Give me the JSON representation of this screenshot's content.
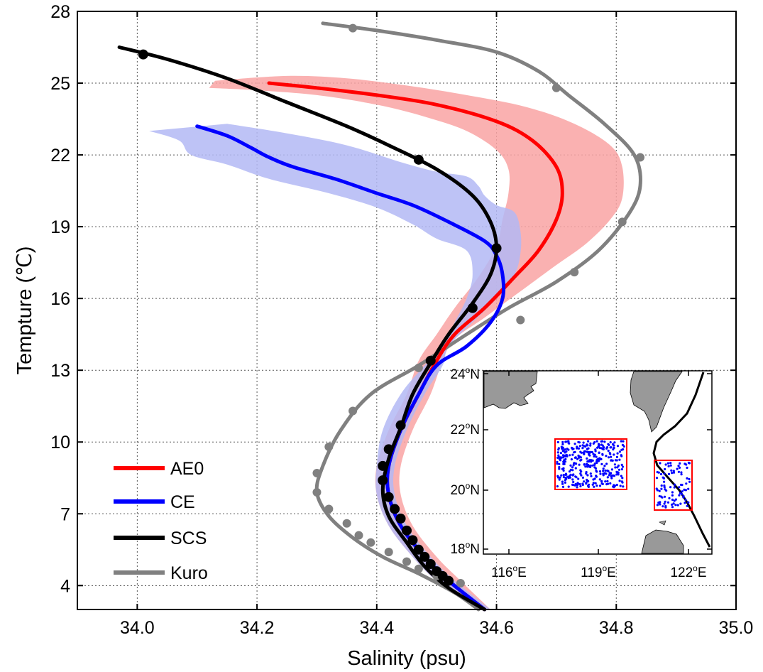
{
  "chart_data": {
    "type": "line",
    "xlabel": "Salinity (psu)",
    "ylabel": "Tempture (℃)",
    "xlim": [
      33.9,
      35.0
    ],
    "ylim": [
      3,
      28
    ],
    "x_ticks": [
      34.0,
      34.2,
      34.4,
      34.6,
      34.8,
      35.0
    ],
    "x_tick_labels": [
      "34.0",
      "34.2",
      "34.4",
      "34.6",
      "34.8",
      "35.0"
    ],
    "y_ticks": [
      4,
      7,
      10,
      13,
      16,
      19,
      22,
      25,
      28
    ],
    "y_tick_labels": [
      "4",
      "7",
      "10",
      "13",
      "16",
      "19",
      "22",
      "25",
      "28"
    ],
    "grid": true,
    "legend_position": "bottom-left",
    "series": [
      {
        "name": "AE0",
        "color": "#ff0000",
        "band_color": "#f9a3a3",
        "points": [
          [
            34.22,
            25.0
          ],
          [
            34.3,
            24.8
          ],
          [
            34.4,
            24.5
          ],
          [
            34.5,
            24.1
          ],
          [
            34.6,
            23.4
          ],
          [
            34.66,
            22.6
          ],
          [
            34.7,
            21.5
          ],
          [
            34.71,
            20.4
          ],
          [
            34.7,
            19.3
          ],
          [
            34.67,
            18.0
          ],
          [
            34.63,
            16.9
          ],
          [
            34.58,
            15.6
          ],
          [
            34.53,
            14.5
          ],
          [
            34.5,
            13.4
          ],
          [
            34.47,
            12.0
          ],
          [
            34.44,
            10.5
          ],
          [
            34.42,
            9.0
          ],
          [
            34.42,
            7.8
          ],
          [
            34.44,
            6.5
          ],
          [
            34.48,
            5.2
          ],
          [
            34.52,
            4.2
          ],
          [
            34.58,
            3.0
          ]
        ],
        "band_upper": [
          [
            34.13,
            25.1
          ],
          [
            34.25,
            25.3
          ],
          [
            34.35,
            25.2
          ],
          [
            34.45,
            24.9
          ],
          [
            34.55,
            24.5
          ],
          [
            34.65,
            24.0
          ],
          [
            34.73,
            23.3
          ],
          [
            34.79,
            22.4
          ],
          [
            34.81,
            21.5
          ],
          [
            34.81,
            20.2
          ],
          [
            34.79,
            19.3
          ],
          [
            34.75,
            18.3
          ],
          [
            34.7,
            17.4
          ],
          [
            34.64,
            16.3
          ],
          [
            34.58,
            15.2
          ],
          [
            34.53,
            14.3
          ],
          [
            34.51,
            13.4
          ],
          [
            34.49,
            12.0
          ],
          [
            34.46,
            10.5
          ],
          [
            34.44,
            9.0
          ],
          [
            34.44,
            7.8
          ],
          [
            34.46,
            6.5
          ],
          [
            34.5,
            5.2
          ],
          [
            34.54,
            4.2
          ],
          [
            34.59,
            3.0
          ]
        ],
        "band_lower": [
          [
            34.12,
            24.8
          ],
          [
            34.2,
            24.7
          ],
          [
            34.3,
            24.5
          ],
          [
            34.4,
            24.1
          ],
          [
            34.48,
            23.6
          ],
          [
            34.55,
            23.0
          ],
          [
            34.6,
            22.2
          ],
          [
            34.62,
            21.4
          ],
          [
            34.62,
            20.4
          ],
          [
            34.61,
            19.3
          ],
          [
            34.6,
            18.2
          ],
          [
            34.57,
            16.9
          ],
          [
            34.53,
            15.6
          ],
          [
            34.5,
            14.5
          ],
          [
            34.47,
            13.4
          ],
          [
            34.45,
            12.0
          ],
          [
            34.42,
            10.5
          ],
          [
            34.4,
            9.0
          ],
          [
            34.4,
            7.8
          ],
          [
            34.42,
            6.5
          ],
          [
            34.46,
            5.2
          ],
          [
            34.5,
            4.2
          ],
          [
            34.57,
            3.0
          ]
        ]
      },
      {
        "name": "CE",
        "color": "#0000ff",
        "band_color": "#b3b9f5",
        "points": [
          [
            34.1,
            23.2
          ],
          [
            34.15,
            22.8
          ],
          [
            34.19,
            22.3
          ],
          [
            34.22,
            21.9
          ],
          [
            34.26,
            21.5
          ],
          [
            34.33,
            21.0
          ],
          [
            34.4,
            20.4
          ],
          [
            34.46,
            19.9
          ],
          [
            34.52,
            19.2
          ],
          [
            34.58,
            18.4
          ],
          [
            34.6,
            17.8
          ],
          [
            34.61,
            17.0
          ],
          [
            34.61,
            16.0
          ],
          [
            34.59,
            15.0
          ],
          [
            34.55,
            14.0
          ],
          [
            34.5,
            13.2
          ],
          [
            34.47,
            12.0
          ],
          [
            34.44,
            10.5
          ],
          [
            34.42,
            9.0
          ],
          [
            34.42,
            7.8
          ],
          [
            34.44,
            6.5
          ],
          [
            34.48,
            5.2
          ],
          [
            34.52,
            4.2
          ],
          [
            34.58,
            3.0
          ]
        ],
        "band_upper": [
          [
            34.15,
            23.3
          ],
          [
            34.25,
            22.9
          ],
          [
            34.35,
            22.4
          ],
          [
            34.44,
            21.7
          ],
          [
            34.5,
            21.3
          ],
          [
            34.55,
            21.1
          ],
          [
            34.57,
            20.7
          ],
          [
            34.58,
            20.3
          ],
          [
            34.6,
            19.9
          ],
          [
            34.63,
            19.6
          ],
          [
            34.64,
            18.8
          ],
          [
            34.64,
            17.9
          ],
          [
            34.63,
            17.0
          ],
          [
            34.6,
            16.0
          ],
          [
            34.56,
            15.0
          ],
          [
            34.52,
            14.0
          ],
          [
            34.51,
            13.2
          ],
          [
            34.48,
            12.0
          ],
          [
            34.45,
            10.5
          ],
          [
            34.43,
            9.0
          ],
          [
            34.43,
            7.8
          ],
          [
            34.45,
            6.5
          ],
          [
            34.49,
            5.2
          ],
          [
            34.53,
            4.2
          ],
          [
            34.59,
            3.0
          ]
        ],
        "band_lower": [
          [
            34.02,
            23.0
          ],
          [
            34.07,
            22.6
          ],
          [
            34.09,
            22.0
          ],
          [
            34.15,
            21.6
          ],
          [
            34.22,
            21.0
          ],
          [
            34.32,
            20.4
          ],
          [
            34.4,
            19.8
          ],
          [
            34.46,
            19.1
          ],
          [
            34.5,
            18.5
          ],
          [
            34.55,
            18.0
          ],
          [
            34.56,
            17.0
          ],
          [
            34.55,
            16.0
          ],
          [
            34.53,
            15.0
          ],
          [
            34.51,
            14.0
          ],
          [
            34.48,
            13.2
          ],
          [
            34.44,
            12.0
          ],
          [
            34.41,
            10.5
          ],
          [
            34.4,
            9.0
          ],
          [
            34.4,
            7.8
          ],
          [
            34.42,
            6.5
          ],
          [
            34.46,
            5.2
          ],
          [
            34.5,
            4.2
          ],
          [
            34.57,
            3.0
          ]
        ]
      },
      {
        "name": "SCS",
        "color": "#000000",
        "marker_size": 7,
        "points": [
          [
            33.97,
            26.5
          ],
          [
            34.05,
            26.0
          ],
          [
            34.15,
            25.2
          ],
          [
            34.25,
            24.2
          ],
          [
            34.35,
            23.2
          ],
          [
            34.42,
            22.4
          ],
          [
            34.5,
            21.4
          ],
          [
            34.56,
            20.3
          ],
          [
            34.59,
            19.2
          ],
          [
            34.6,
            18.1
          ],
          [
            34.59,
            17.0
          ],
          [
            34.56,
            15.8
          ],
          [
            34.52,
            14.5
          ],
          [
            34.49,
            13.3
          ],
          [
            34.46,
            12.0
          ],
          [
            34.44,
            10.6
          ],
          [
            34.42,
            9.3
          ],
          [
            34.41,
            8.0
          ],
          [
            34.42,
            6.9
          ],
          [
            34.45,
            5.8
          ],
          [
            34.48,
            4.8
          ],
          [
            34.52,
            3.9
          ],
          [
            34.58,
            3.0
          ]
        ],
        "markers": [
          [
            34.01,
            26.2
          ],
          [
            34.47,
            21.8
          ],
          [
            34.6,
            18.1
          ],
          [
            34.56,
            15.6
          ],
          [
            34.49,
            13.4
          ],
          [
            34.44,
            10.7
          ],
          [
            34.42,
            9.7
          ],
          [
            34.41,
            9.0
          ],
          [
            34.41,
            8.4
          ],
          [
            34.42,
            7.7
          ],
          [
            34.43,
            7.2
          ],
          [
            34.44,
            6.8
          ],
          [
            34.45,
            6.3
          ],
          [
            34.46,
            5.9
          ],
          [
            34.47,
            5.5
          ],
          [
            34.48,
            5.2
          ],
          [
            34.49,
            4.9
          ],
          [
            34.5,
            4.6
          ],
          [
            34.51,
            4.4
          ],
          [
            34.52,
            4.2
          ]
        ]
      },
      {
        "name": "Kuro",
        "color": "#808080",
        "marker_size": 6,
        "points": [
          [
            34.31,
            27.5
          ],
          [
            34.4,
            27.2
          ],
          [
            34.5,
            26.8
          ],
          [
            34.6,
            26.3
          ],
          [
            34.67,
            25.5
          ],
          [
            34.72,
            24.5
          ],
          [
            34.78,
            23.3
          ],
          [
            34.83,
            22.0
          ],
          [
            34.84,
            20.7
          ],
          [
            34.82,
            19.5
          ],
          [
            34.77,
            18.0
          ],
          [
            34.7,
            16.7
          ],
          [
            34.62,
            15.6
          ],
          [
            34.55,
            14.5
          ],
          [
            34.47,
            13.2
          ],
          [
            34.39,
            12.0
          ],
          [
            34.34,
            10.5
          ],
          [
            34.31,
            9.0
          ],
          [
            34.3,
            7.9
          ],
          [
            34.32,
            6.9
          ],
          [
            34.36,
            6.0
          ],
          [
            34.41,
            5.2
          ],
          [
            34.47,
            4.5
          ],
          [
            34.53,
            3.7
          ],
          [
            34.57,
            3.0
          ]
        ],
        "markers": [
          [
            34.36,
            27.3
          ],
          [
            34.7,
            24.8
          ],
          [
            34.84,
            21.9
          ],
          [
            34.81,
            19.2
          ],
          [
            34.73,
            17.1
          ],
          [
            34.64,
            15.1
          ],
          [
            34.47,
            13.1
          ],
          [
            34.36,
            11.3
          ],
          [
            34.32,
            9.8
          ],
          [
            34.3,
            8.7
          ],
          [
            34.3,
            7.9
          ],
          [
            34.32,
            7.2
          ],
          [
            34.35,
            6.6
          ],
          [
            34.37,
            6.1
          ],
          [
            34.39,
            5.8
          ],
          [
            34.42,
            5.4
          ],
          [
            34.45,
            5.0
          ],
          [
            34.47,
            4.7
          ],
          [
            34.5,
            4.4
          ],
          [
            34.54,
            4.1
          ]
        ]
      }
    ],
    "inset_map": {
      "x_tick_labels": [
        "116",
        "119",
        "122"
      ],
      "x_tick_suffix": "E",
      "y_tick_labels": [
        "18",
        "20",
        "22",
        "24"
      ],
      "y_tick_suffix": "N",
      "degree_symbol": "o",
      "box_color": "#ff0000",
      "dot_color": "#0000ff",
      "land_color": "#999999"
    }
  }
}
